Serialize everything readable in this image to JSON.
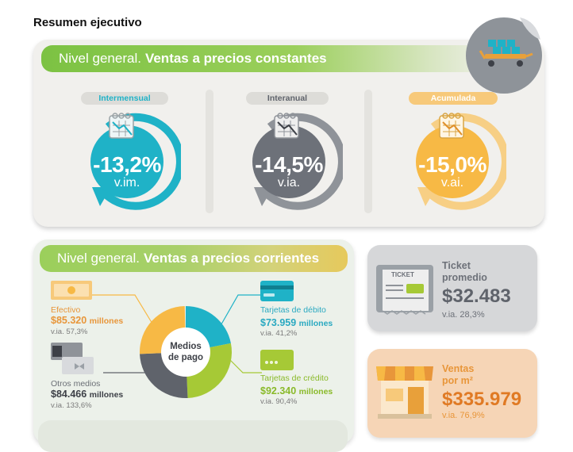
{
  "page_title": "Resumen ejecutivo",
  "constant_prices": {
    "banner_light": "Nivel general.",
    "banner_bold": "Ventas a precios constantes",
    "kpis": [
      {
        "label": "Intermensual",
        "value": "-13,2%",
        "unit": "v.im.",
        "color": "#1fb2c7"
      },
      {
        "label": "Interanual",
        "value": "-14,5%",
        "unit": "v.ia.",
        "color": "#6d7179"
      },
      {
        "label": "Acumulada",
        "value": "-15,0%",
        "unit": "v.ai.",
        "color": "#f7b945"
      }
    ]
  },
  "current_prices": {
    "banner_light": "Nivel general.",
    "banner_bold": "Ventas a precios corrientes",
    "donut_label_line1": "Medios",
    "donut_label_line2": "de pago",
    "payment_methods": {
      "efectivo": {
        "label": "Efectivo",
        "amount": "$85.320",
        "unit": "millones",
        "via": "v.ia. 57,3%",
        "color": "#f7b945"
      },
      "otros": {
        "label": "Otros medios",
        "amount": "$84.466",
        "unit": "millones",
        "via": "v.ia. 133,6%",
        "color": "#5f636b"
      },
      "debito": {
        "label": "Tarjetas de débito",
        "amount": "$73.959",
        "unit": "millones",
        "via": "v.ia. 41,2%",
        "color": "#1fb2c7"
      },
      "credito": {
        "label": "Tarjetas de crédito",
        "amount": "$92.340",
        "unit": "millones",
        "via": "v.ia. 90,4%",
        "color": "#a6c936"
      }
    },
    "donut_shares": {
      "debito": 0.2193,
      "credito": 0.2738,
      "otros": 0.2505,
      "efectivo": 0.253
    }
  },
  "ticket": {
    "label_line1": "Ticket",
    "label_line2": "promedio",
    "value": "$32.483",
    "via": "v.ia. 28,3%",
    "icon_text": "TICKET"
  },
  "ventas_m2": {
    "label_line1": "Ventas",
    "label_line2": "por m²",
    "value": "$335.979",
    "via": "v.ia. 76,9%"
  }
}
